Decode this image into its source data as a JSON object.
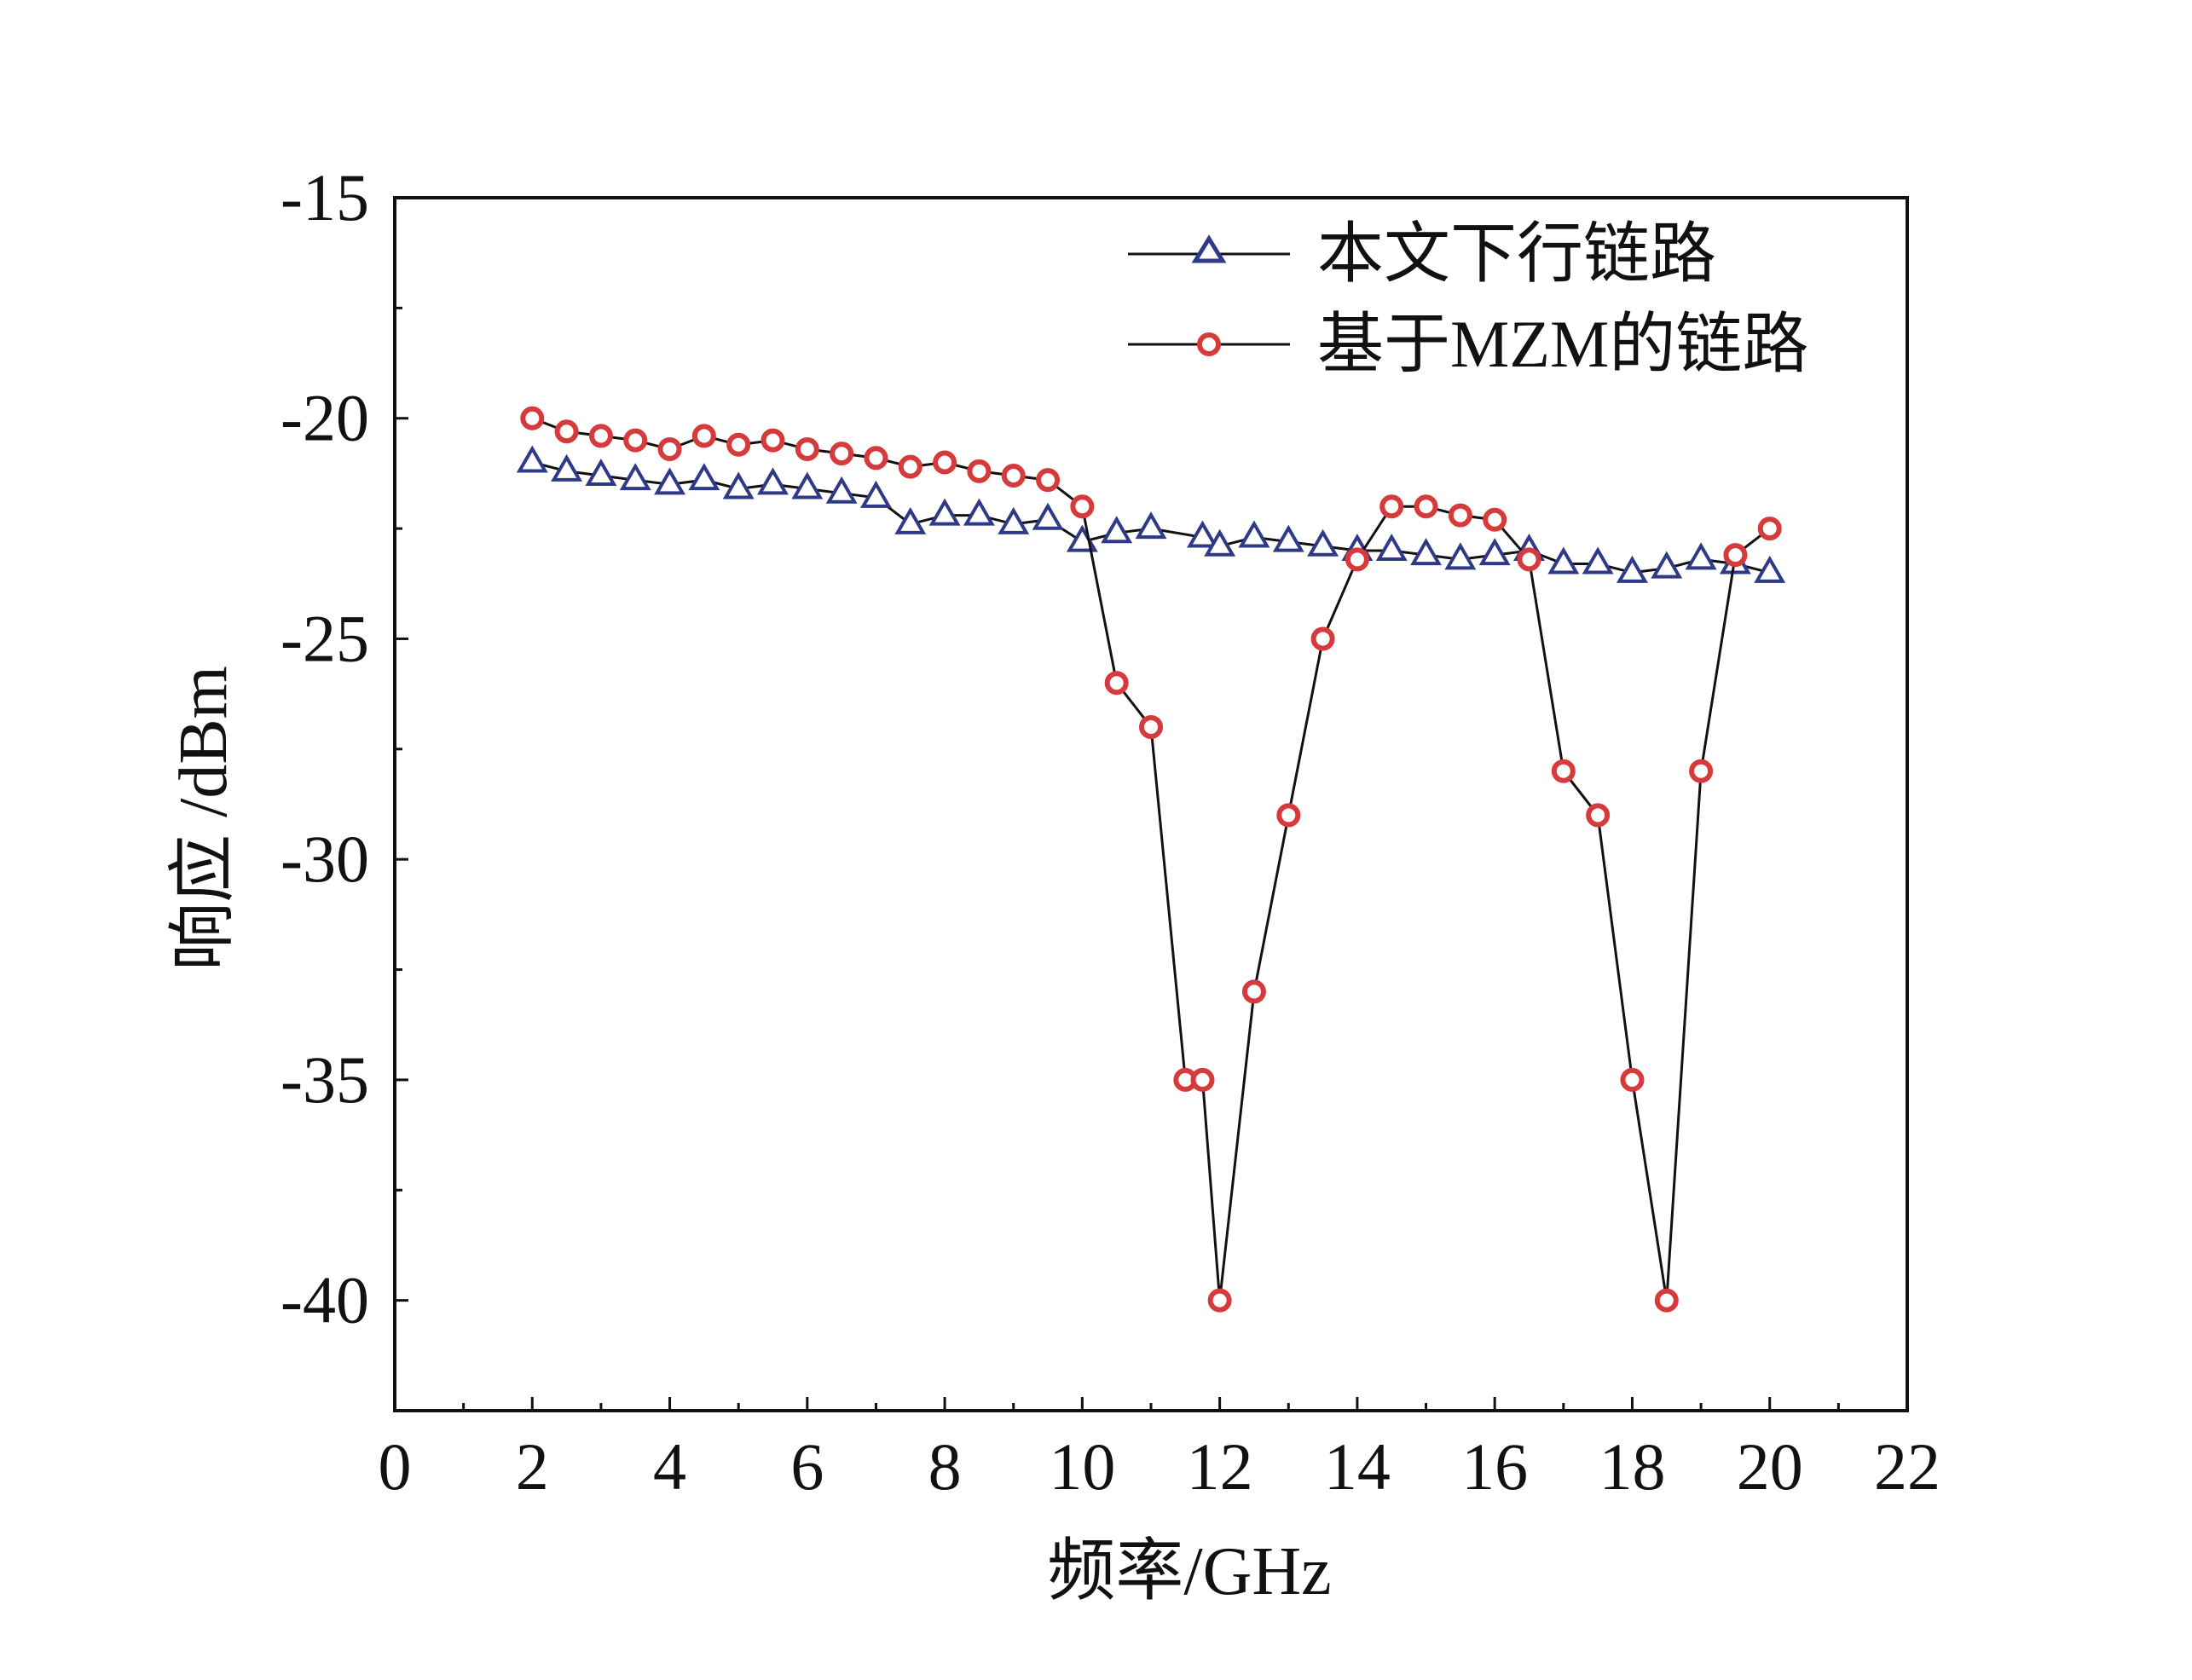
{
  "chart_data": {
    "type": "line",
    "title": "",
    "xlabel": "频率/GHz",
    "ylabel": "响应 /dBm",
    "xlim": [
      0,
      22
    ],
    "ylim": [
      -42.5,
      -15
    ],
    "xticks": [
      0,
      2,
      4,
      6,
      8,
      10,
      12,
      14,
      16,
      18,
      20,
      22
    ],
    "xtick_labels": [
      "0",
      "2",
      "4",
      "6",
      "8",
      "10",
      "12",
      "14",
      "16",
      "18",
      "20",
      "22"
    ],
    "yticks": [
      -15,
      -20,
      -25,
      -30,
      -35,
      -40
    ],
    "ytick_labels": [
      "-15",
      "-20",
      "-25",
      "-30",
      "-35",
      "-40"
    ],
    "grid": false,
    "legend_position": "top-right",
    "series": [
      {
        "name": "本文下行链路",
        "marker": "triangle",
        "marker_color": "#2e3a87",
        "line_color": "#111111",
        "x": [
          2,
          2.5,
          3,
          3.5,
          4,
          4.5,
          5,
          5.5,
          6,
          6.5,
          7,
          7.5,
          8,
          8.5,
          9,
          9.5,
          10,
          10.5,
          11,
          11.75,
          12,
          12.5,
          13,
          13.5,
          14,
          14.5,
          15,
          15.5,
          16,
          16.5,
          17,
          17.5,
          18,
          18.5,
          19,
          19.5,
          20
        ],
        "y": [
          -21.0,
          -21.2,
          -21.3,
          -21.4,
          -21.5,
          -21.4,
          -21.6,
          -21.5,
          -21.6,
          -21.7,
          -21.8,
          -22.4,
          -22.2,
          -22.2,
          -22.4,
          -22.3,
          -22.8,
          -22.6,
          -22.5,
          -22.7,
          -22.9,
          -22.7,
          -22.8,
          -22.9,
          -23.0,
          -23.0,
          -23.1,
          -23.2,
          -23.1,
          -23.0,
          -23.3,
          -23.3,
          -23.5,
          -23.4,
          -23.2,
          -23.3,
          -23.5
        ]
      },
      {
        "name": "基于MZM的链路",
        "marker": "circle",
        "marker_color": "#d63a3a",
        "line_color": "#111111",
        "x": [
          2,
          2.5,
          3,
          3.5,
          4,
          4.5,
          5,
          5.5,
          6,
          6.5,
          7,
          7.5,
          8,
          8.5,
          9,
          9.5,
          10,
          10.5,
          11,
          11.5,
          11.75,
          12,
          12.5,
          13,
          13.5,
          14,
          14.5,
          15,
          15.5,
          16,
          16.5,
          17,
          17.5,
          18,
          18.5,
          19,
          19.5,
          20
        ],
        "y": [
          -20.0,
          -20.3,
          -20.4,
          -20.5,
          -20.7,
          -20.4,
          -20.6,
          -20.5,
          -20.7,
          -20.8,
          -20.9,
          -21.1,
          -21.0,
          -21.2,
          -21.3,
          -21.4,
          -22.0,
          -26.0,
          -27.0,
          -35.0,
          -35.0,
          -40.0,
          -33.0,
          -29.0,
          -25.0,
          -23.2,
          -22.0,
          -22.0,
          -22.2,
          -22.3,
          -23.2,
          -28.0,
          -29.0,
          -35.0,
          -40.0,
          -28.0,
          -23.1,
          -22.5
        ]
      }
    ]
  }
}
